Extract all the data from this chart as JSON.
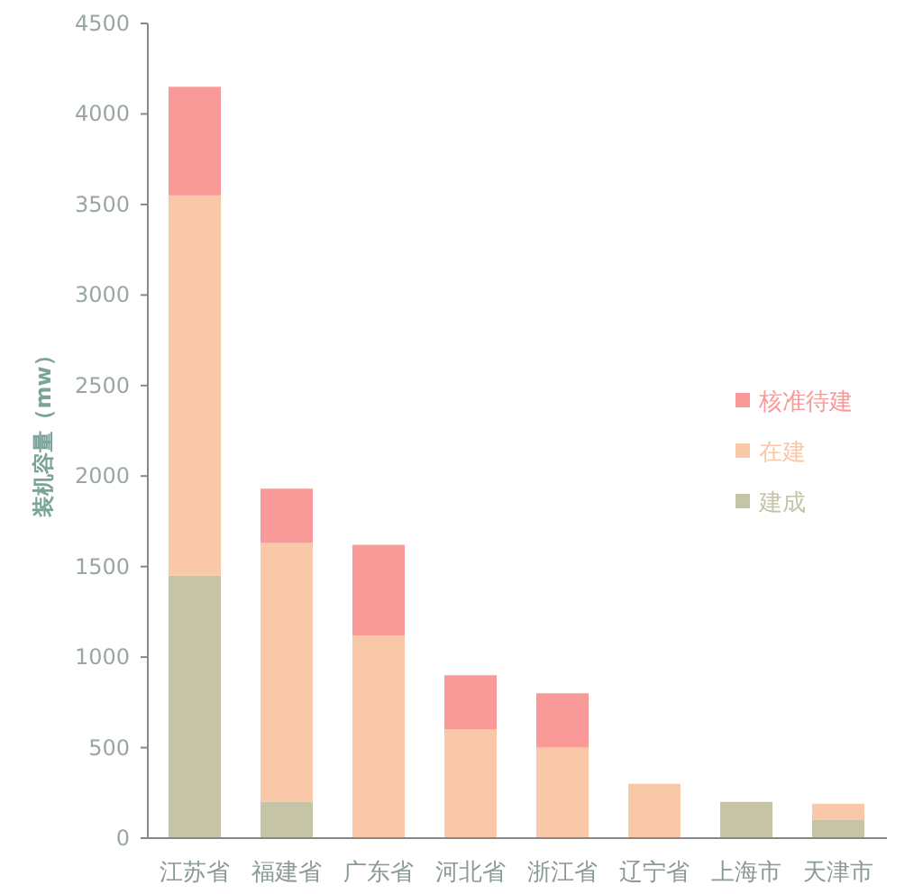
{
  "chart_data": {
    "type": "bar",
    "stacked": true,
    "ylabel": "装机容量（mw）",
    "categories": [
      "江苏省",
      "福建省",
      "广东省",
      "河北省",
      "浙江省",
      "辽宁省",
      "上海市",
      "天津市"
    ],
    "series": [
      {
        "name": "建成",
        "color": "#c5c4a6",
        "values": [
          1450,
          200,
          0,
          0,
          0,
          0,
          200,
          100
        ]
      },
      {
        "name": "在建",
        "color": "#f8c8a8",
        "values": [
          2100,
          1430,
          1120,
          600,
          500,
          300,
          0,
          90
        ]
      },
      {
        "name": "核准待建",
        "color": "#f99a98",
        "values": [
          600,
          300,
          500,
          300,
          300,
          0,
          0,
          0
        ]
      }
    ],
    "ylim": [
      0,
      4500
    ],
    "yticks": [
      0,
      500,
      1000,
      1500,
      2000,
      2500,
      3000,
      3500,
      4000,
      4500
    ],
    "grid": false,
    "legend": "right"
  }
}
